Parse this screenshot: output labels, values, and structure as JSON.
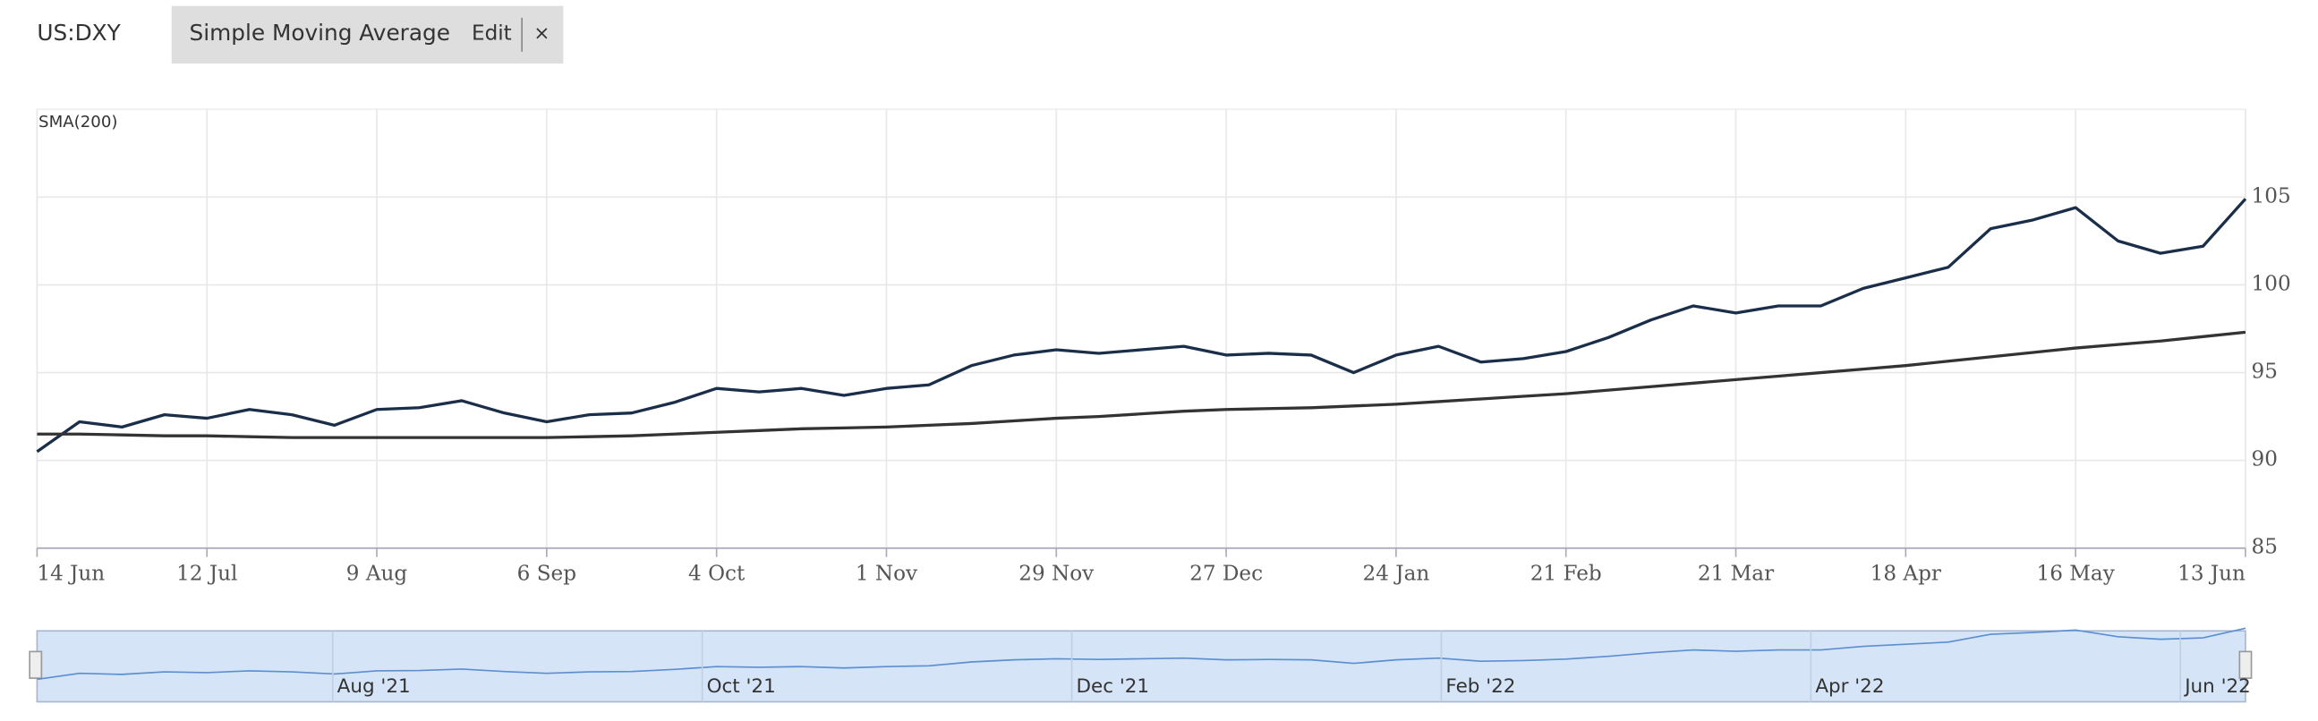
{
  "header": {
    "symbol": "US:DXY",
    "indicator": "Simple Moving Average",
    "edit": "Edit",
    "close": "×"
  },
  "chart_data": {
    "type": "line",
    "label": "SMA(200)",
    "categories": [
      "14 Jun",
      null,
      null,
      null,
      "12 Jul",
      null,
      null,
      null,
      "9 Aug",
      null,
      null,
      null,
      "6 Sep",
      null,
      null,
      null,
      "4 Oct",
      null,
      null,
      null,
      "1 Nov",
      null,
      null,
      null,
      "29 Nov",
      null,
      null,
      null,
      "27 Dec",
      null,
      null,
      null,
      "24 Jan",
      null,
      null,
      null,
      "21 Feb",
      null,
      null,
      null,
      "21 Mar",
      null,
      null,
      null,
      "18 Apr",
      null,
      null,
      null,
      "16 May",
      null,
      null,
      null,
      "13 Jun"
    ],
    "series": [
      {
        "name": "US:DXY",
        "color": "#1a2e4a",
        "values": [
          90.5,
          92.2,
          91.9,
          92.6,
          92.4,
          92.9,
          92.6,
          92.0,
          92.9,
          93.0,
          93.4,
          92.7,
          92.2,
          92.6,
          92.7,
          93.3,
          94.1,
          93.9,
          94.1,
          93.7,
          94.1,
          94.3,
          95.4,
          96.0,
          96.3,
          96.1,
          96.3,
          96.5,
          96.0,
          96.1,
          96.0,
          95.0,
          96.0,
          96.5,
          95.6,
          95.8,
          96.2,
          97.0,
          98.0,
          98.8,
          98.4,
          98.8,
          98.8,
          99.8,
          100.4,
          101.0,
          103.2,
          103.7,
          104.4,
          102.5,
          101.8,
          102.2,
          104.9
        ]
      },
      {
        "name": "SMA(200)",
        "color": "#333333",
        "values": [
          91.5,
          91.5,
          91.45,
          91.4,
          91.4,
          91.35,
          91.3,
          91.3,
          91.3,
          91.3,
          91.3,
          91.3,
          91.3,
          91.35,
          91.4,
          91.5,
          91.6,
          91.7,
          91.8,
          91.85,
          91.9,
          92.0,
          92.1,
          92.25,
          92.4,
          92.5,
          92.65,
          92.8,
          92.9,
          92.95,
          93.0,
          93.1,
          93.2,
          93.35,
          93.5,
          93.65,
          93.8,
          94.0,
          94.2,
          94.4,
          94.6,
          94.8,
          95.0,
          95.2,
          95.4,
          95.65,
          95.9,
          96.15,
          96.4,
          96.6,
          96.8,
          97.05,
          97.3
        ]
      }
    ],
    "ylim": [
      85,
      110
    ],
    "yticks": [
      85,
      90,
      95,
      100,
      105
    ],
    "grid": true
  },
  "navigator": {
    "labels": [
      "Aug '21",
      "Oct '21",
      "Dec '21",
      "Feb '22",
      "Apr '22",
      "Jun '22"
    ]
  }
}
